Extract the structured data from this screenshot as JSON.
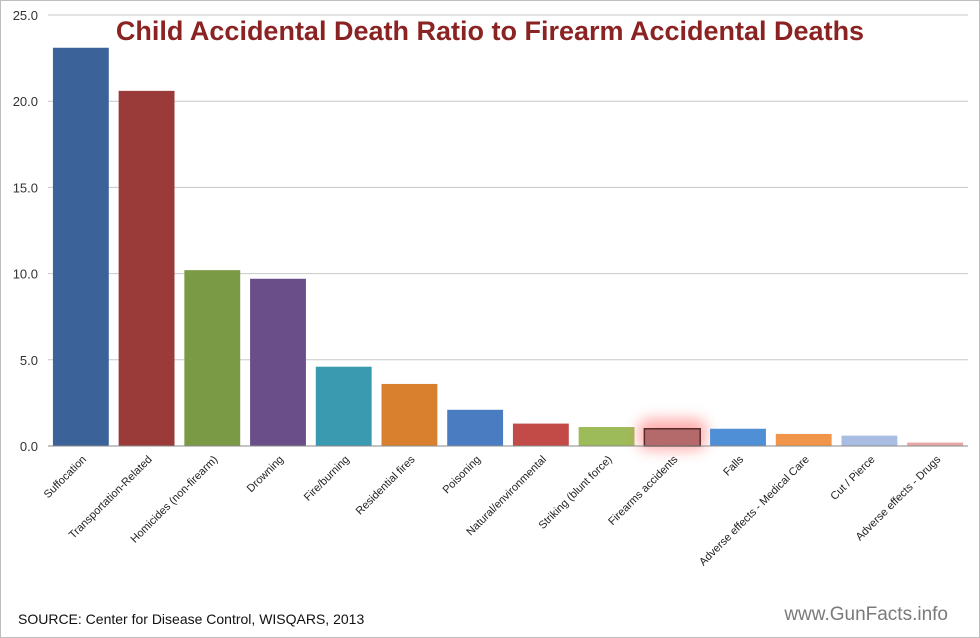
{
  "chart_data": {
    "type": "bar",
    "title": "Child Accidental Death Ratio to Firearm Accidental Deaths",
    "xlabel": "",
    "ylabel": "",
    "ylim": [
      0,
      25
    ],
    "yticks": [
      "0.0",
      "5.0",
      "10.0",
      "15.0",
      "20.0",
      "25.0"
    ],
    "grid": true,
    "legend": "none",
    "categories": [
      "Suffocation",
      "Transportation-Related",
      "Homicides (non-firearm)",
      "Drowning",
      "Fire/burning",
      "Residential fires",
      "Poisoning",
      "Natural/environmental",
      "Striking (blunt force)",
      "Firearms accidents",
      "Falls",
      "Adverse effects - Medical Care",
      "Cut / Pierce",
      "Adverse effects - Drugs"
    ],
    "values": [
      23.1,
      20.6,
      10.2,
      9.7,
      4.6,
      3.6,
      2.1,
      1.3,
      1.1,
      1.0,
      1.0,
      0.7,
      0.6,
      0.2
    ],
    "colors": [
      "#3c6399",
      "#9b3b39",
      "#7b9a45",
      "#6a4e8a",
      "#3a9ab0",
      "#d9802e",
      "#4a7cc2",
      "#c24b48",
      "#9dbb59",
      "#b46a6a",
      "#4f8fd6",
      "#f0954a",
      "#a9bde2",
      "#e4a8a6"
    ],
    "highlight_category": "Firearms accidents",
    "highlight_color": "#ff6b6b"
  },
  "footer": {
    "source": "SOURCE: Center for Disease Control, WISQARS, 2013",
    "site": "www.GunFacts.info"
  }
}
